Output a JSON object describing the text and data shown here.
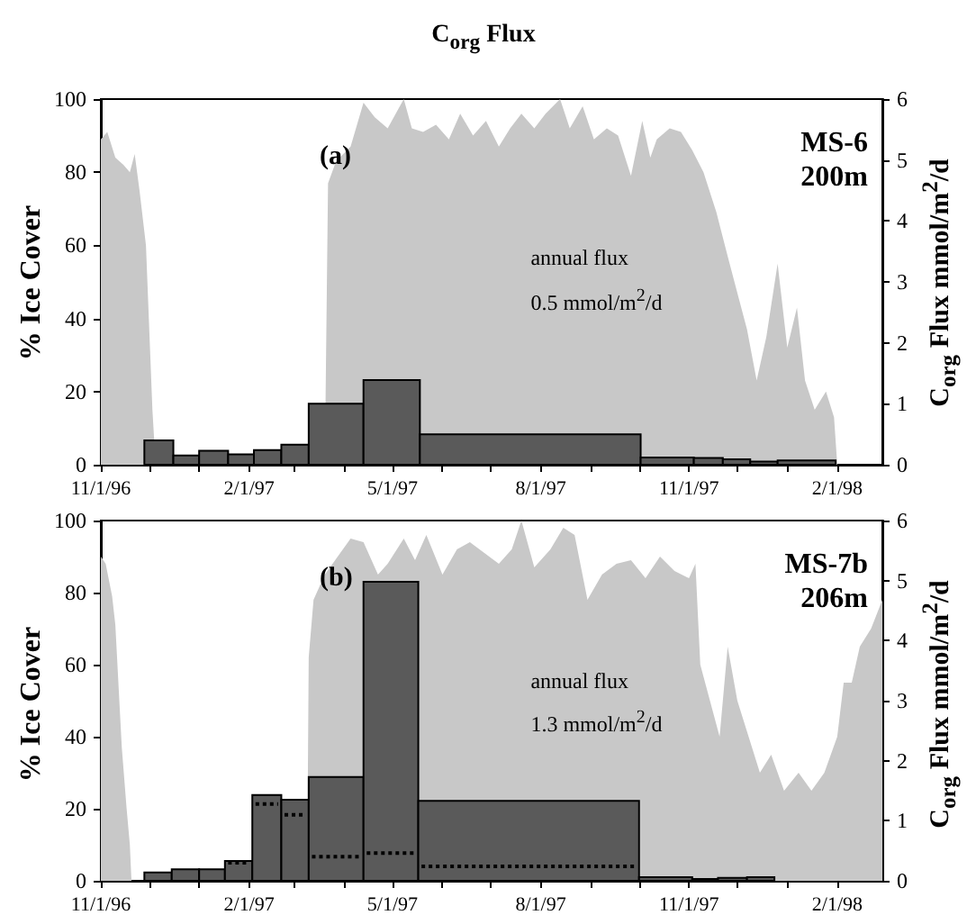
{
  "chart_data": [
    {
      "type": "area",
      "title": "C$_{org}$ Flux",
      "ylabel": "% Ice Cover",
      "y2label": "C$_{org}$ Flux  mmol/m$^{2}$/d",
      "annotations": [
        "(a)",
        "MS-6",
        "200m",
        "annual flux",
        "0.5 mmol/m$^{2}$/d"
      ],
      "xlim": [
        "1996-11-01",
        "1998-03-01"
      ],
      "xticks": [
        {
          "value": "1996-11-01",
          "label": "11/1/96"
        },
        {
          "value": "1996-12-01",
          "label": null
        },
        {
          "value": "1997-01-01",
          "label": null
        },
        {
          "value": "1997-02-01",
          "label": "2/1/97"
        },
        {
          "value": "1997-03-01",
          "label": null
        },
        {
          "value": "1997-04-01",
          "label": null
        },
        {
          "value": "1997-05-01",
          "label": "5/1/97"
        },
        {
          "value": "1997-06-01",
          "label": null
        },
        {
          "value": "1997-07-01",
          "label": null
        },
        {
          "value": "1997-08-01",
          "label": "8/1/97"
        },
        {
          "value": "1997-09-01",
          "label": null
        },
        {
          "value": "1997-10-01",
          "label": null
        },
        {
          "value": "1997-11-01",
          "label": "11/1/97"
        },
        {
          "value": "1997-12-01",
          "label": null
        },
        {
          "value": "1998-01-01",
          "label": null
        },
        {
          "value": "1998-02-01",
          "label": "2/1/98"
        }
      ],
      "ylim": [
        0,
        100
      ],
      "yticks": [
        0,
        20,
        40,
        60,
        80,
        100
      ],
      "y2lim": [
        0,
        6
      ],
      "y2ticks": [
        0,
        1,
        2,
        3,
        4,
        5,
        6
      ],
      "series": [
        {
          "type": "area",
          "color": "#c8c8c8",
          "x": [
            "1996-11-01",
            "1996-11-05",
            "1996-11-10",
            "1996-11-15",
            "1996-11-19",
            "1996-11-22",
            "1996-11-25",
            "1996-11-29",
            "1996-12-03",
            "1996-12-05",
            "1997-03-20",
            "1997-03-22",
            "1997-03-27",
            "1997-04-05",
            "1997-04-13",
            "1997-04-20",
            "1997-04-28",
            "1997-05-08",
            "1997-05-13",
            "1997-05-20",
            "1997-05-28",
            "1997-06-05",
            "1997-06-12",
            "1997-06-20",
            "1997-06-28",
            "1997-07-06",
            "1997-07-13",
            "1997-07-20",
            "1997-07-28",
            "1997-08-04",
            "1997-08-13",
            "1997-08-19",
            "1997-08-27",
            "1997-09-03",
            "1997-09-11",
            "1997-09-18",
            "1997-09-26",
            "1997-10-03",
            "1997-10-08",
            "1997-10-12",
            "1997-10-20",
            "1997-10-27",
            "1997-11-03",
            "1997-11-10",
            "1997-11-18",
            "1997-11-25",
            "1997-12-01",
            "1997-12-07",
            "1997-12-13",
            "1997-12-19",
            "1997-12-26",
            "1998-01-01",
            "1998-01-07",
            "1998-01-12",
            "1998-01-18",
            "1998-01-25",
            "1998-01-30",
            "1998-02-01"
          ],
          "values": [
            89,
            91,
            84,
            82,
            80,
            85,
            75,
            60,
            15,
            0,
            0,
            77,
            83,
            87,
            99,
            95,
            92,
            100,
            92,
            91,
            93,
            89,
            96,
            90,
            94,
            87,
            92,
            96,
            92,
            96,
            100,
            92,
            98,
            89,
            92,
            90,
            79,
            94,
            84,
            89,
            92,
            91,
            86,
            80,
            69,
            57,
            47,
            37,
            23,
            35,
            55,
            32,
            43,
            23,
            15,
            20,
            13,
            0
          ]
        },
        {
          "type": "histogram",
          "axis": "y2",
          "color": "#5a5a5a",
          "bins": [
            "1996-11-28",
            "1996-12-16",
            "1997-01-01",
            "1997-01-19",
            "1997-02-04",
            "1997-02-21",
            "1997-03-10",
            "1997-04-13",
            "1997-05-18",
            "1997-10-02",
            "1997-11-04",
            "1997-11-22",
            "1997-12-09",
            "1997-12-26",
            "1998-01-31"
          ],
          "values": [
            0.4,
            0.15,
            0.23,
            0.17,
            0.24,
            0.33,
            1.0,
            1.39,
            0.5,
            0.12,
            0.11,
            0.09,
            0.05,
            0.07
          ]
        }
      ]
    },
    {
      "type": "area",
      "ylabel": "% Ice Cover",
      "y2label": "C$_{org}$ Flux  mmol/m$^{2}$/d",
      "annotations": [
        "(b)",
        "MS-7b",
        "206m",
        "annual flux",
        "1.3 mmol/m$^{2}$/d"
      ],
      "xlim": [
        "1996-11-01",
        "1998-03-01"
      ],
      "xticks": [
        {
          "value": "1996-11-01",
          "label": "11/1/96"
        },
        {
          "value": "1996-12-01",
          "label": null
        },
        {
          "value": "1997-01-01",
          "label": null
        },
        {
          "value": "1997-02-01",
          "label": "2/1/97"
        },
        {
          "value": "1997-03-01",
          "label": null
        },
        {
          "value": "1997-04-01",
          "label": null
        },
        {
          "value": "1997-05-01",
          "label": "5/1/97"
        },
        {
          "value": "1997-06-01",
          "label": null
        },
        {
          "value": "1997-07-01",
          "label": null
        },
        {
          "value": "1997-08-01",
          "label": "8/1/97"
        },
        {
          "value": "1997-09-01",
          "label": null
        },
        {
          "value": "1997-10-01",
          "label": null
        },
        {
          "value": "1997-11-01",
          "label": "11/1/97"
        },
        {
          "value": "1997-12-01",
          "label": null
        },
        {
          "value": "1998-01-01",
          "label": null
        },
        {
          "value": "1998-02-01",
          "label": "2/1/98"
        }
      ],
      "ylim": [
        0,
        100
      ],
      "yticks": [
        0,
        20,
        40,
        60,
        80,
        100
      ],
      "y2lim": [
        0,
        6
      ],
      "y2ticks": [
        0,
        1,
        2,
        3,
        4,
        5,
        6
      ],
      "series": [
        {
          "type": "area",
          "color": "#c8c8c8",
          "x": [
            "1996-11-01",
            "1996-11-04",
            "1996-11-08",
            "1996-11-10",
            "1996-11-12",
            "1996-11-14",
            "1996-11-17",
            "1996-11-19",
            "1996-11-20",
            "1997-03-09",
            "1997-03-10",
            "1997-03-13",
            "1997-03-20",
            "1997-03-28",
            "1997-04-05",
            "1997-04-13",
            "1997-04-22",
            "1997-04-28",
            "1997-05-08",
            "1997-05-15",
            "1997-05-22",
            "1997-06-01",
            "1997-06-10",
            "1997-06-18",
            "1997-06-27",
            "1997-07-06",
            "1997-07-14",
            "1997-07-20",
            "1997-07-28",
            "1997-08-07",
            "1997-08-15",
            "1997-08-22",
            "1997-08-30",
            "1997-09-08",
            "1997-09-17",
            "1997-09-26",
            "1997-10-05",
            "1997-10-14",
            "1997-10-23",
            "1997-11-01",
            "1997-11-05",
            "1997-11-08",
            "1997-11-14",
            "1997-11-20",
            "1997-11-25",
            "1997-12-01",
            "1997-12-08",
            "1997-12-15",
            "1997-12-22",
            "1997-12-30",
            "1998-01-08",
            "1998-01-16",
            "1998-01-24",
            "1998-02-01",
            "1998-02-05",
            "1998-02-10",
            "1998-02-15",
            "1998-02-22",
            "1998-03-01"
          ],
          "values": [
            90,
            88,
            79,
            71,
            54,
            37,
            20,
            10,
            0,
            0,
            62,
            78,
            85,
            90,
            95,
            94,
            85,
            88,
            95,
            89,
            96,
            85,
            92,
            94,
            91,
            88,
            92,
            100,
            87,
            92,
            98,
            96,
            78,
            85,
            88,
            89,
            84,
            90,
            86,
            84,
            88,
            60,
            50,
            40,
            65,
            50,
            40,
            30,
            35,
            25,
            30,
            25,
            30,
            40,
            55,
            55,
            65,
            70,
            78
          ]
        },
        {
          "type": "histogram",
          "axis": "y2",
          "color": "#5a5a5a",
          "bins": [
            "1996-11-28",
            "1996-12-15",
            "1997-01-01",
            "1997-01-17",
            "1997-02-03",
            "1997-02-21",
            "1997-03-10",
            "1997-04-13",
            "1997-05-17",
            "1997-10-01",
            "1997-11-03",
            "1997-11-19",
            "1997-12-07",
            "1997-12-24"
          ],
          "values": [
            0.14,
            0.19,
            0.19,
            0.33,
            1.43,
            1.35,
            1.73,
            4.98,
            1.33,
            0.06,
            0.03,
            0.05,
            0.06
          ]
        },
        {
          "type": "line",
          "axis": "y2",
          "color": "#000000",
          "line_style": "dotted",
          "x": [
            "1997-01-19",
            "1997-02-01"
          ],
          "values": [
            0.3,
            0.3
          ]
        },
        {
          "type": "line",
          "axis": "y2",
          "color": "#000000",
          "line_style": "dotted",
          "x": [
            "1997-02-05",
            "1997-02-19"
          ],
          "values": [
            1.28,
            1.28
          ]
        },
        {
          "type": "line",
          "axis": "y2",
          "color": "#000000",
          "line_style": "dotted",
          "x": [
            "1997-02-23",
            "1997-03-08"
          ],
          "values": [
            1.1,
            1.1
          ]
        },
        {
          "type": "line",
          "axis": "y2",
          "color": "#000000",
          "line_style": "dotted",
          "x": [
            "1997-03-12",
            "1997-04-11"
          ],
          "values": [
            0.4,
            0.4
          ]
        },
        {
          "type": "line",
          "axis": "y2",
          "color": "#000000",
          "line_style": "dotted",
          "x": [
            "1997-04-15",
            "1997-05-15"
          ],
          "values": [
            0.46,
            0.46
          ]
        },
        {
          "type": "line",
          "axis": "y2",
          "color": "#000000",
          "line_style": "dotted",
          "x": [
            "1997-05-19",
            "1997-09-29"
          ],
          "values": [
            0.24,
            0.24
          ]
        }
      ]
    }
  ]
}
